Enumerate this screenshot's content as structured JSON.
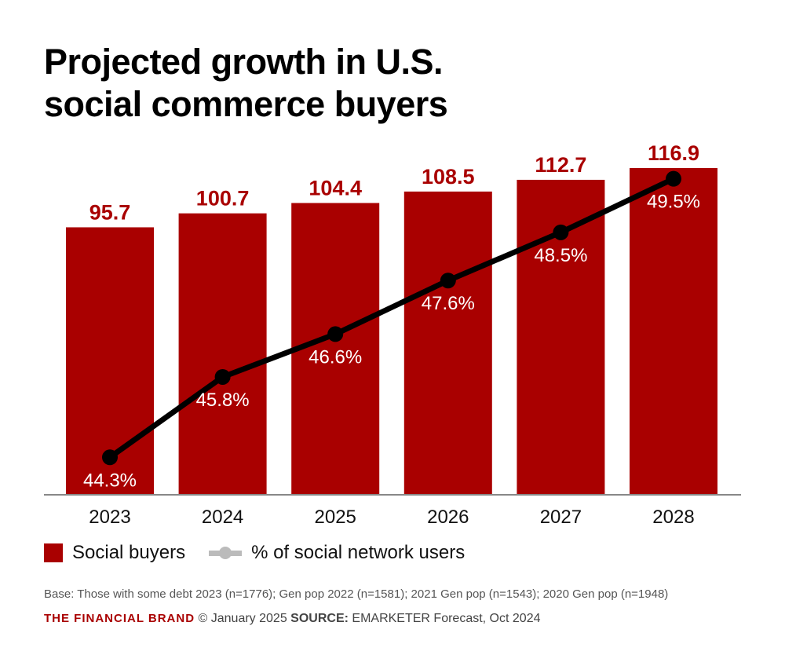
{
  "chart_data": {
    "type": "bar+line",
    "title": "Projected growth in U.S. social commerce buyers",
    "title_lines": [
      "Projected growth in U.S.",
      "social commerce buyers"
    ],
    "categories": [
      "2023",
      "2024",
      "2025",
      "2026",
      "2027",
      "2028"
    ],
    "series": [
      {
        "name": "Social buyers",
        "type": "bar",
        "values": [
          95.7,
          100.7,
          104.4,
          108.5,
          112.7,
          116.9
        ],
        "labels": [
          "95.7",
          "100.7",
          "104.4",
          "108.5",
          "112.7",
          "116.9"
        ],
        "color": "#a90000"
      },
      {
        "name": "% of social network users",
        "type": "line",
        "values": [
          44.3,
          45.8,
          46.6,
          47.6,
          48.5,
          49.5
        ],
        "labels": [
          "44.3%",
          "45.8%",
          "46.6%",
          "47.6%",
          "48.5%",
          "49.5%"
        ],
        "color": "#000000",
        "legend_color": "#bbbbbb"
      }
    ],
    "ylim": [
      0,
      116.9
    ],
    "y2lim": [
      43.6,
      49.7
    ],
    "grid": false,
    "legend": "bottom-left"
  },
  "footer": {
    "base": "Base: Those with some debt 2023 (n=1776); Gen pop 2022 (n=1581); 2021 Gen pop (n=1543); 2020 Gen pop (n=1948)",
    "brand": "THE FINANCIAL BRAND",
    "date": "© January 2025",
    "source_label": "SOURCE:",
    "source": "EMARKETER Forecast, Oct 2024"
  }
}
